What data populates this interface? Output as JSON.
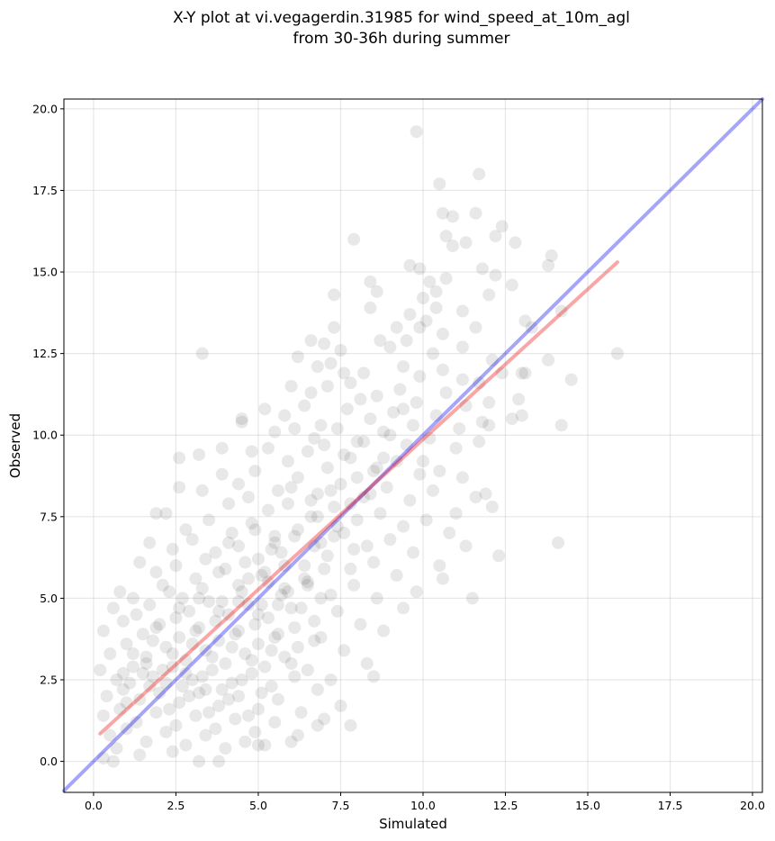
{
  "chart_data": {
    "type": "scatter",
    "title_lines": [
      "X-Y plot at vi.vegagerdin.31985 for wind_speed_at_10m_agl",
      "from 30-36h during summer"
    ],
    "xlabel": "Simulated",
    "ylabel": "Observed",
    "xlim": [
      -0.9,
      20.3
    ],
    "ylim": [
      -0.95,
      20.3
    ],
    "xticks": [
      0.0,
      2.5,
      5.0,
      7.5,
      10.0,
      12.5,
      15.0,
      17.5,
      20.0
    ],
    "yticks": [
      0.0,
      2.5,
      5.0,
      7.5,
      10.0,
      12.5,
      15.0,
      17.5,
      20.0
    ],
    "xtick_labels": [
      "0.0",
      "2.5",
      "5.0",
      "7.5",
      "10.0",
      "12.5",
      "15.0",
      "17.5",
      "20.0"
    ],
    "ytick_labels": [
      "0.0",
      "2.5",
      "5.0",
      "7.5",
      "10.0",
      "12.5",
      "15.0",
      "17.5",
      "20.0"
    ],
    "grid": true,
    "point_color": "#000000",
    "point_opacity": 0.09,
    "identity_line": {
      "from": [
        -0.9,
        -0.9
      ],
      "to": [
        20.3,
        20.3
      ],
      "color": "#0000ee"
    },
    "fit_line": {
      "from": [
        0.2,
        0.85
      ],
      "to": [
        15.9,
        15.3
      ],
      "color": "#ee0000"
    },
    "points": [
      [
        9.8,
        19.3
      ],
      [
        11.7,
        18.0
      ],
      [
        10.5,
        17.7
      ],
      [
        11.6,
        16.8
      ],
      [
        10.6,
        16.8
      ],
      [
        10.9,
        16.7
      ],
      [
        7.9,
        16.0
      ],
      [
        10.7,
        16.1
      ],
      [
        12.2,
        16.1
      ],
      [
        12.4,
        16.4
      ],
      [
        12.8,
        15.9
      ],
      [
        10.9,
        15.8
      ],
      [
        11.3,
        15.9
      ],
      [
        13.9,
        15.5
      ],
      [
        9.6,
        15.2
      ],
      [
        9.9,
        15.1
      ],
      [
        11.8,
        15.1
      ],
      [
        13.8,
        15.2
      ],
      [
        10.7,
        14.8
      ],
      [
        10.2,
        14.7
      ],
      [
        12.2,
        14.9
      ],
      [
        8.4,
        14.7
      ],
      [
        10.4,
        14.4
      ],
      [
        7.3,
        14.3
      ],
      [
        12.7,
        14.6
      ],
      [
        12.0,
        14.3
      ],
      [
        10.0,
        14.2
      ],
      [
        8.6,
        14.4
      ],
      [
        10.4,
        13.9
      ],
      [
        9.6,
        13.7
      ],
      [
        11.2,
        13.8
      ],
      [
        13.1,
        13.5
      ],
      [
        13.3,
        13.3
      ],
      [
        14.2,
        13.8
      ],
      [
        8.4,
        13.9
      ],
      [
        9.2,
        13.3
      ],
      [
        9.9,
        13.3
      ],
      [
        10.1,
        13.5
      ],
      [
        11.6,
        13.3
      ],
      [
        10.6,
        13.1
      ],
      [
        7.3,
        13.3
      ],
      [
        6.6,
        12.9
      ],
      [
        7.0,
        12.8
      ],
      [
        7.5,
        12.6
      ],
      [
        3.3,
        12.5
      ],
      [
        8.7,
        12.9
      ],
      [
        9.0,
        12.7
      ],
      [
        9.5,
        12.9
      ],
      [
        10.3,
        12.5
      ],
      [
        11.2,
        12.7
      ],
      [
        12.1,
        12.3
      ],
      [
        13.8,
        12.3
      ],
      [
        15.9,
        12.5
      ],
      [
        14.5,
        11.7
      ],
      [
        13.0,
        11.9
      ],
      [
        6.2,
        12.4
      ],
      [
        6.8,
        12.1
      ],
      [
        7.2,
        12.2
      ],
      [
        7.6,
        11.9
      ],
      [
        8.2,
        11.9
      ],
      [
        9.4,
        12.1
      ],
      [
        9.9,
        11.8
      ],
      [
        10.6,
        12.0
      ],
      [
        11.2,
        11.7
      ],
      [
        11.7,
        11.6
      ],
      [
        12.4,
        11.9
      ],
      [
        13.1,
        11.9
      ],
      [
        6.0,
        11.5
      ],
      [
        6.6,
        11.3
      ],
      [
        7.1,
        11.5
      ],
      [
        7.8,
        11.6
      ],
      [
        8.6,
        11.2
      ],
      [
        9.3,
        11.4
      ],
      [
        9.8,
        11.0
      ],
      [
        10.7,
        11.3
      ],
      [
        11.3,
        10.9
      ],
      [
        12.0,
        11.0
      ],
      [
        12.9,
        11.1
      ],
      [
        5.2,
        10.8
      ],
      [
        5.8,
        10.6
      ],
      [
        6.4,
        10.9
      ],
      [
        6.9,
        10.3
      ],
      [
        7.7,
        10.8
      ],
      [
        8.4,
        10.5
      ],
      [
        9.1,
        10.7
      ],
      [
        9.7,
        10.3
      ],
      [
        10.4,
        10.6
      ],
      [
        11.1,
        10.2
      ],
      [
        11.8,
        10.4
      ],
      [
        12.7,
        10.5
      ],
      [
        13.0,
        10.6
      ],
      [
        14.2,
        10.3
      ],
      [
        4.5,
        10.5
      ],
      [
        4.5,
        10.4
      ],
      [
        5.5,
        10.1
      ],
      [
        6.1,
        10.2
      ],
      [
        6.7,
        9.9
      ],
      [
        7.4,
        10.2
      ],
      [
        8.0,
        9.8
      ],
      [
        8.8,
        10.1
      ],
      [
        9.5,
        9.7
      ],
      [
        10.2,
        9.9
      ],
      [
        11.0,
        9.6
      ],
      [
        11.7,
        9.8
      ],
      [
        12.0,
        10.3
      ],
      [
        2.6,
        9.3
      ],
      [
        3.2,
        9.4
      ],
      [
        3.9,
        9.6
      ],
      [
        4.8,
        9.5
      ],
      [
        5.3,
        9.6
      ],
      [
        5.9,
        9.2
      ],
      [
        6.5,
        9.5
      ],
      [
        7.1,
        9.0
      ],
      [
        7.8,
        9.3
      ],
      [
        8.5,
        8.9
      ],
      [
        9.2,
        9.2
      ],
      [
        9.9,
        8.8
      ],
      [
        10.5,
        8.9
      ],
      [
        11.2,
        8.7
      ],
      [
        11.9,
        8.2
      ],
      [
        11.6,
        8.1
      ],
      [
        12.1,
        7.8
      ],
      [
        3.9,
        8.8
      ],
      [
        4.4,
        8.5
      ],
      [
        4.9,
        8.9
      ],
      [
        5.6,
        8.3
      ],
      [
        6.2,
        8.7
      ],
      [
        6.8,
        8.2
      ],
      [
        7.5,
        8.5
      ],
      [
        8.2,
        8.1
      ],
      [
        8.9,
        8.4
      ],
      [
        9.6,
        8.0
      ],
      [
        10.3,
        8.3
      ],
      [
        11.0,
        7.6
      ],
      [
        2.6,
        8.4
      ],
      [
        3.3,
        8.3
      ],
      [
        4.1,
        7.9
      ],
      [
        4.7,
        8.1
      ],
      [
        5.3,
        7.7
      ],
      [
        5.9,
        7.9
      ],
      [
        6.6,
        7.5
      ],
      [
        7.3,
        7.8
      ],
      [
        8.0,
        7.4
      ],
      [
        8.7,
        7.6
      ],
      [
        9.4,
        7.2
      ],
      [
        10.1,
        7.4
      ],
      [
        10.8,
        7.0
      ],
      [
        1.9,
        7.6
      ],
      [
        2.2,
        7.6
      ],
      [
        2.8,
        7.1
      ],
      [
        3.5,
        7.4
      ],
      [
        4.2,
        7.0
      ],
      [
        4.8,
        7.3
      ],
      [
        5.5,
        6.9
      ],
      [
        6.2,
        7.1
      ],
      [
        6.9,
        6.7
      ],
      [
        7.6,
        7.0
      ],
      [
        8.3,
        6.6
      ],
      [
        9.0,
        6.8
      ],
      [
        9.7,
        6.4
      ],
      [
        10.5,
        6.0
      ],
      [
        11.3,
        6.6
      ],
      [
        12.3,
        6.3
      ],
      [
        14.1,
        6.7
      ],
      [
        1.7,
        6.7
      ],
      [
        2.4,
        6.5
      ],
      [
        3.0,
        6.8
      ],
      [
        3.7,
        6.4
      ],
      [
        4.4,
        6.6
      ],
      [
        5.0,
        6.2
      ],
      [
        5.7,
        6.4
      ],
      [
        6.4,
        6.0
      ],
      [
        7.1,
        6.3
      ],
      [
        7.8,
        5.9
      ],
      [
        8.5,
        6.1
      ],
      [
        9.2,
        5.7
      ],
      [
        9.8,
        5.2
      ],
      [
        10.6,
        5.6
      ],
      [
        11.5,
        5.0
      ],
      [
        0.8,
        5.2
      ],
      [
        1.4,
        6.1
      ],
      [
        1.9,
        5.8
      ],
      [
        2.5,
        6.0
      ],
      [
        3.1,
        5.6
      ],
      [
        3.8,
        5.8
      ],
      [
        4.4,
        5.4
      ],
      [
        5.1,
        5.7
      ],
      [
        5.8,
        5.3
      ],
      [
        6.5,
        5.5
      ],
      [
        7.2,
        5.1
      ],
      [
        7.9,
        5.4
      ],
      [
        8.6,
        5.0
      ],
      [
        9.4,
        4.7
      ],
      [
        0.6,
        4.7
      ],
      [
        1.2,
        5.0
      ],
      [
        1.7,
        4.8
      ],
      [
        2.3,
        5.2
      ],
      [
        2.9,
        4.6
      ],
      [
        3.5,
        4.9
      ],
      [
        4.1,
        4.5
      ],
      [
        4.7,
        4.8
      ],
      [
        5.3,
        4.4
      ],
      [
        6.0,
        4.7
      ],
      [
        6.7,
        4.3
      ],
      [
        7.4,
        4.6
      ],
      [
        8.1,
        4.2
      ],
      [
        8.8,
        4.0
      ],
      [
        0.3,
        4.0
      ],
      [
        0.9,
        4.3
      ],
      [
        1.5,
        3.9
      ],
      [
        2.0,
        4.2
      ],
      [
        2.6,
        3.8
      ],
      [
        3.2,
        4.1
      ],
      [
        3.8,
        3.7
      ],
      [
        4.4,
        4.0
      ],
      [
        5.0,
        3.6
      ],
      [
        5.6,
        3.9
      ],
      [
        6.2,
        3.5
      ],
      [
        6.9,
        3.8
      ],
      [
        7.6,
        3.4
      ],
      [
        8.3,
        3.0
      ],
      [
        8.5,
        2.6
      ],
      [
        0.5,
        3.3
      ],
      [
        1.0,
        3.6
      ],
      [
        1.6,
        3.2
      ],
      [
        2.2,
        3.5
      ],
      [
        2.8,
        3.1
      ],
      [
        3.4,
        3.4
      ],
      [
        4.0,
        3.0
      ],
      [
        4.6,
        3.3
      ],
      [
        5.2,
        2.9
      ],
      [
        5.8,
        3.2
      ],
      [
        6.5,
        2.8
      ],
      [
        7.2,
        2.5
      ],
      [
        0.2,
        2.8
      ],
      [
        0.7,
        2.5
      ],
      [
        1.2,
        2.9
      ],
      [
        1.8,
        2.6
      ],
      [
        2.4,
        2.9
      ],
      [
        3.0,
        2.5
      ],
      [
        3.6,
        2.8
      ],
      [
        4.2,
        2.4
      ],
      [
        4.8,
        2.7
      ],
      [
        5.4,
        2.3
      ],
      [
        6.1,
        2.6
      ],
      [
        6.8,
        2.2
      ],
      [
        7.5,
        1.7
      ],
      [
        0.4,
        2.0
      ],
      [
        0.9,
        2.2
      ],
      [
        1.4,
        1.9
      ],
      [
        2.0,
        2.1
      ],
      [
        2.6,
        1.8
      ],
      [
        3.2,
        2.1
      ],
      [
        3.8,
        1.7
      ],
      [
        4.4,
        2.0
      ],
      [
        5.0,
        1.6
      ],
      [
        5.6,
        1.9
      ],
      [
        6.3,
        1.5
      ],
      [
        7.0,
        1.3
      ],
      [
        0.3,
        1.4
      ],
      [
        0.8,
        1.6
      ],
      [
        1.3,
        1.2
      ],
      [
        1.9,
        1.5
      ],
      [
        2.5,
        1.1
      ],
      [
        3.1,
        1.4
      ],
      [
        3.7,
        1.0
      ],
      [
        4.3,
        1.3
      ],
      [
        4.9,
        0.9
      ],
      [
        5.5,
        1.2
      ],
      [
        6.2,
        0.8
      ],
      [
        6.8,
        1.1
      ],
      [
        7.8,
        1.1
      ],
      [
        0.5,
        0.8
      ],
      [
        1.0,
        1.0
      ],
      [
        1.6,
        0.6
      ],
      [
        2.2,
        0.9
      ],
      [
        2.8,
        0.5
      ],
      [
        3.4,
        0.8
      ],
      [
        4.0,
        0.4
      ],
      [
        4.6,
        0.6
      ],
      [
        5.2,
        0.5
      ],
      [
        6.0,
        0.6
      ],
      [
        0.3,
        0.1
      ],
      [
        0.6,
        0.0
      ],
      [
        1.4,
        0.2
      ],
      [
        2.4,
        0.3
      ],
      [
        3.2,
        0.0
      ],
      [
        3.8,
        0.0
      ],
      [
        5.0,
        0.5
      ],
      [
        0.7,
        0.4
      ],
      [
        1.1,
        2.4
      ],
      [
        1.5,
        2.7
      ],
      [
        2.1,
        2.8
      ],
      [
        2.7,
        2.3
      ],
      [
        3.3,
        2.6
      ],
      [
        3.9,
        2.2
      ],
      [
        4.5,
        2.5
      ],
      [
        5.1,
        2.1
      ],
      [
        1.2,
        3.3
      ],
      [
        1.8,
        3.7
      ],
      [
        2.4,
        3.3
      ],
      [
        3.0,
        3.6
      ],
      [
        3.6,
        3.2
      ],
      [
        4.2,
        3.5
      ],
      [
        4.8,
        3.1
      ],
      [
        5.4,
        3.4
      ],
      [
        6.0,
        3.0
      ],
      [
        1.3,
        4.5
      ],
      [
        1.9,
        4.1
      ],
      [
        2.5,
        4.4
      ],
      [
        3.1,
        4.0
      ],
      [
        3.7,
        4.3
      ],
      [
        4.3,
        3.9
      ],
      [
        4.9,
        4.2
      ],
      [
        5.5,
        3.8
      ],
      [
        6.1,
        4.1
      ],
      [
        6.7,
        3.7
      ],
      [
        2.1,
        5.4
      ],
      [
        2.7,
        5.0
      ],
      [
        3.3,
        5.3
      ],
      [
        3.9,
        4.9
      ],
      [
        4.5,
        5.2
      ],
      [
        5.1,
        4.8
      ],
      [
        5.7,
        5.1
      ],
      [
        6.3,
        4.7
      ],
      [
        6.9,
        5.0
      ],
      [
        3.4,
        6.2
      ],
      [
        4.0,
        5.9
      ],
      [
        4.6,
        6.1
      ],
      [
        5.2,
        5.8
      ],
      [
        5.8,
        6.0
      ],
      [
        6.4,
        5.6
      ],
      [
        7.0,
        5.9
      ],
      [
        4.9,
        7.1
      ],
      [
        5.5,
        6.7
      ],
      [
        6.1,
        6.9
      ],
      [
        6.7,
        6.6
      ],
      [
        7.3,
        6.9
      ],
      [
        7.9,
        6.5
      ],
      [
        6.0,
        8.4
      ],
      [
        6.6,
        8.0
      ],
      [
        7.2,
        8.3
      ],
      [
        7.8,
        7.9
      ],
      [
        8.4,
        8.2
      ],
      [
        7.0,
        9.7
      ],
      [
        7.6,
        9.4
      ],
      [
        8.2,
        9.8
      ],
      [
        8.8,
        9.3
      ],
      [
        1.0,
        1.8
      ],
      [
        1.7,
        2.3
      ],
      [
        2.3,
        1.6
      ],
      [
        2.9,
        2.0
      ],
      [
        3.5,
        1.5
      ],
      [
        4.1,
        1.9
      ],
      [
        4.7,
        1.4
      ],
      [
        1.6,
        3.0
      ],
      [
        2.2,
        2.4
      ],
      [
        2.8,
        2.7
      ],
      [
        3.4,
        2.2
      ],
      [
        0.9,
        2.7
      ],
      [
        2.6,
        4.7
      ],
      [
        3.2,
        5.0
      ],
      [
        3.8,
        4.6
      ],
      [
        4.4,
        4.9
      ],
      [
        5.0,
        4.5
      ],
      [
        5.6,
        4.8
      ],
      [
        5.3,
        5.5
      ],
      [
        5.9,
        5.2
      ],
      [
        6.5,
        5.4
      ],
      [
        4.7,
        5.6
      ],
      [
        5.4,
        6.5
      ],
      [
        4.1,
        6.7
      ],
      [
        6.8,
        7.5
      ],
      [
        7.4,
        7.2
      ],
      [
        8.0,
        8.7
      ],
      [
        8.6,
        9.0
      ],
      [
        9.0,
        10.0
      ],
      [
        9.4,
        10.8
      ],
      [
        8.1,
        11.1
      ],
      [
        10.0,
        9.2
      ]
    ]
  }
}
